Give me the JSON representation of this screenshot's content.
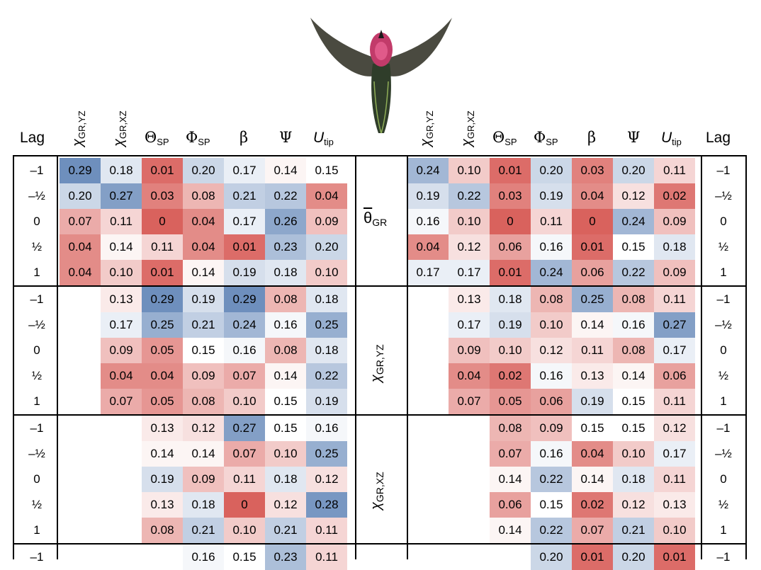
{
  "headers": {
    "lag": "Lag",
    "chi_yz": "χ",
    "chi_yz_sub": "GR,YZ",
    "chi_xz": "χ",
    "chi_xz_sub": "GR,XZ",
    "theta_sp": "Θ",
    "theta_sp_sub": "SP",
    "phi_sp": "Φ",
    "phi_sp_sub": "SP",
    "beta": "β",
    "psi": "Ψ",
    "utip": "U",
    "utip_sub": "tip"
  },
  "row_labels": {
    "theta_gr": "θ",
    "theta_gr_sub": "GR",
    "chi_yz": "χ",
    "chi_yz_sub": "GR,YZ",
    "chi_xz": "χ",
    "chi_xz_sub": "GR,XZ"
  },
  "lags": [
    "–1",
    "–½",
    "0",
    "½",
    "1"
  ],
  "lags_partial": [
    "–1"
  ],
  "chart_data": {
    "type": "heatmap",
    "columns": [
      "χGR,YZ",
      "χGR,XZ",
      "ΘSP",
      "ΦSP",
      "β",
      "Ψ",
      "Utip"
    ],
    "left": [
      [
        [
          "0.29",
          "0.18",
          "0.01",
          "0.20",
          "0.17",
          "0.14",
          "0.15"
        ],
        [
          "0.20",
          "0.27",
          "0.03",
          "0.08",
          "0.21",
          "0.22",
          "0.04"
        ],
        [
          "0.07",
          "0.11",
          "0",
          "0.04",
          "0.17",
          "0.26",
          "0.09"
        ],
        [
          "0.04",
          "0.14",
          "0.11",
          "0.04",
          "0.01",
          "0.23",
          "0.20"
        ],
        [
          "0.04",
          "0.10",
          "0.01",
          "0.14",
          "0.19",
          "0.18",
          "0.10"
        ]
      ],
      [
        [
          "",
          "0.13",
          "0.29",
          "0.19",
          "0.29",
          "0.08",
          "0.18"
        ],
        [
          "",
          "0.17",
          "0.25",
          "0.21",
          "0.24",
          "0.16",
          "0.25"
        ],
        [
          "",
          "0.09",
          "0.05",
          "0.15",
          "0.16",
          "0.08",
          "0.18"
        ],
        [
          "",
          "0.04",
          "0.04",
          "0.09",
          "0.07",
          "0.14",
          "0.22"
        ],
        [
          "",
          "0.07",
          "0.05",
          "0.08",
          "0.10",
          "0.15",
          "0.19"
        ]
      ],
      [
        [
          "",
          "",
          "0.13",
          "0.12",
          "0.27",
          "0.15",
          "0.16"
        ],
        [
          "",
          "",
          "0.14",
          "0.14",
          "0.07",
          "0.10",
          "0.25"
        ],
        [
          "",
          "",
          "0.19",
          "0.09",
          "0.11",
          "0.18",
          "0.12"
        ],
        [
          "",
          "",
          "0.13",
          "0.18",
          "0",
          "0.12",
          "0.28"
        ],
        [
          "",
          "",
          "0.08",
          "0.21",
          "0.10",
          "0.21",
          "0.11"
        ]
      ],
      [
        [
          "",
          "",
          "",
          "0.16",
          "0.15",
          "0.23",
          "0.11"
        ]
      ]
    ],
    "right": [
      [
        [
          "0.24",
          "0.10",
          "0.01",
          "0.20",
          "0.03",
          "0.20",
          "0.11"
        ],
        [
          "0.19",
          "0.22",
          "0.03",
          "0.19",
          "0.04",
          "0.12",
          "0.02"
        ],
        [
          "0.16",
          "0.10",
          "0",
          "0.11",
          "0",
          "0.24",
          "0.09"
        ],
        [
          "0.04",
          "0.12",
          "0.06",
          "0.16",
          "0.01",
          "0.15",
          "0.18"
        ],
        [
          "0.17",
          "0.17",
          "0.01",
          "0.24",
          "0.06",
          "0.22",
          "0.09"
        ]
      ],
      [
        [
          "",
          "0.13",
          "0.18",
          "0.08",
          "0.25",
          "0.08",
          "0.11"
        ],
        [
          "",
          "0.17",
          "0.19",
          "0.10",
          "0.14",
          "0.16",
          "0.27"
        ],
        [
          "",
          "0.09",
          "0.10",
          "0.12",
          "0.11",
          "0.08",
          "0.17"
        ],
        [
          "",
          "0.04",
          "0.02",
          "0.16",
          "0.13",
          "0.14",
          "0.06"
        ],
        [
          "",
          "0.07",
          "0.05",
          "0.06",
          "0.19",
          "0.15",
          "0.11"
        ]
      ],
      [
        [
          "",
          "",
          "0.08",
          "0.09",
          "0.15",
          "0.15",
          "0.12"
        ],
        [
          "",
          "",
          "0.07",
          "0.16",
          "0.04",
          "0.10",
          "0.17"
        ],
        [
          "",
          "",
          "0.14",
          "0.22",
          "0.14",
          "0.18",
          "0.11"
        ],
        [
          "",
          "",
          "0.06",
          "0.15",
          "0.02",
          "0.12",
          "0.13"
        ],
        [
          "",
          "",
          "0.14",
          "0.22",
          "0.07",
          "0.21",
          "0.10"
        ]
      ],
      [
        [
          "",
          "",
          "",
          "0.20",
          "0.01",
          "0.20",
          "0.01"
        ]
      ]
    ],
    "color_scale": {
      "low": "#d9625d",
      "mid": "#ffffff",
      "high": "#6e8fbd",
      "domain": [
        0,
        0.15,
        0.29
      ]
    }
  }
}
